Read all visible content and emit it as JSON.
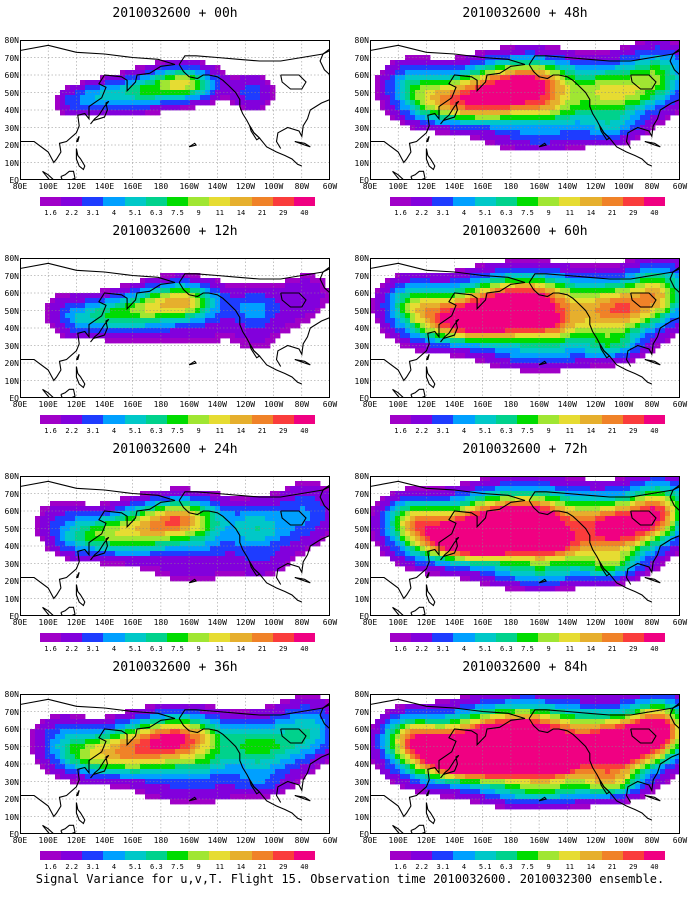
{
  "panels": [
    {
      "title": "2010032600 + 00h",
      "level": 0
    },
    {
      "title": "2010032600 + 48h",
      "level": 4
    },
    {
      "title": "2010032600 + 12h",
      "level": 1
    },
    {
      "title": "2010032600 + 60h",
      "level": 5
    },
    {
      "title": "2010032600 + 24h",
      "level": 2
    },
    {
      "title": "2010032600 + 72h",
      "level": 6
    },
    {
      "title": "2010032600 + 36h",
      "level": 3
    },
    {
      "title": "2010032600 + 84h",
      "level": 7
    }
  ],
  "lat_labels": [
    "80N",
    "70N",
    "60N",
    "50N",
    "40N",
    "30N",
    "20N",
    "10N",
    "EQ"
  ],
  "lon_labels": [
    "80E",
    "100E",
    "120E",
    "140E",
    "160E",
    "180",
    "160W",
    "140W",
    "120W",
    "100W",
    "80W",
    "60W"
  ],
  "colorbar": {
    "labels": [
      "1.6",
      "2.2",
      "3.1",
      "4",
      "5.1",
      "6.3",
      "7.5",
      "9",
      "11",
      "14",
      "21",
      "29",
      "40"
    ],
    "colors": [
      "#a000c8",
      "#8200dc",
      "#1e3cff",
      "#00a0ff",
      "#00c8c8",
      "#00d28c",
      "#00dc00",
      "#a0e632",
      "#e6dc32",
      "#e6af2d",
      "#f08228",
      "#fa3c3c",
      "#f00082"
    ]
  },
  "footer": "Signal Variance for u,v,T. Flight 15. Observation time 2010032600. 2010032300 ensemble."
}
